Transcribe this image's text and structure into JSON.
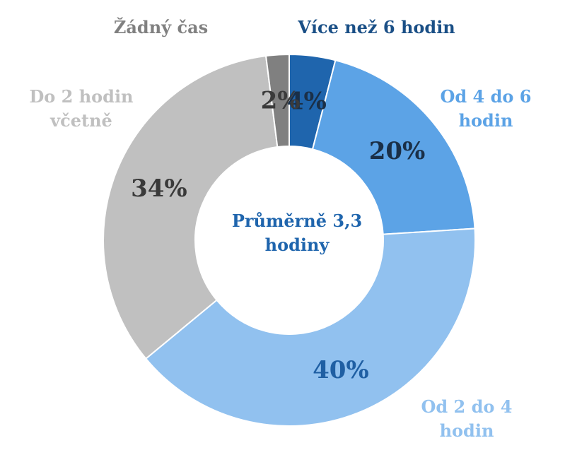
{
  "chart_data": {
    "type": "pie",
    "donut": true,
    "center_label": "Průměrně 3,3 hodiny",
    "categories": [
      "Více než 6 hodin",
      "Od 4 do 6 hodin",
      "Od 2 do 4 hodin",
      "Do 2 hodin včetně",
      "Žádný čas"
    ],
    "values": [
      4,
      20,
      40,
      34,
      2
    ],
    "value_labels": [
      "4%",
      "20%",
      "40%",
      "34%",
      "2%"
    ],
    "colors": [
      "#1f65ad",
      "#5ca3e6",
      "#91c1ef",
      "#c0c0c0",
      "#808080"
    ],
    "label_colors": [
      "#1a4f86",
      "#5ca3e6",
      "#91c1ef",
      "#c0c0c0",
      "#808080"
    ],
    "value_label_colors": [
      "#1a2f47",
      "#1a2f47",
      "#1f5fa3",
      "#3a3a3a",
      "#3a3a3a"
    ],
    "legend": "labels-outside"
  }
}
